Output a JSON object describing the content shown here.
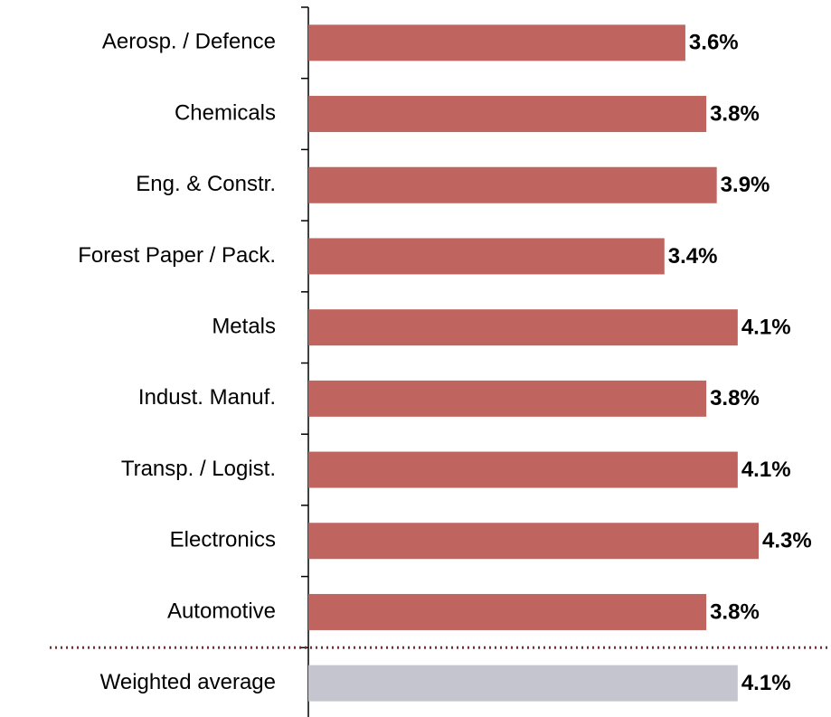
{
  "chart_data": {
    "type": "bar",
    "orientation": "horizontal",
    "categories": [
      "Aerosp. / Defence",
      "Chemicals",
      "Eng. & Constr.",
      "Forest Paper / Pack.",
      "Metals",
      "Indust. Manuf.",
      "Transp. / Logist.",
      "Electronics",
      "Automotive",
      "Weighted average"
    ],
    "values": [
      3.6,
      3.8,
      3.9,
      3.4,
      4.1,
      3.8,
      4.1,
      4.3,
      3.8,
      4.1
    ],
    "value_labels": [
      "3.6%",
      "3.8%",
      "3.9%",
      "3.4%",
      "4.1%",
      "3.8%",
      "4.1%",
      "4.3%",
      "3.8%",
      "4.1%"
    ],
    "colors": [
      "#c0645f",
      "#c0645f",
      "#c0645f",
      "#c0645f",
      "#c0645f",
      "#c0645f",
      "#c0645f",
      "#c0645f",
      "#c0645f",
      "#c5c5cf"
    ]
  }
}
